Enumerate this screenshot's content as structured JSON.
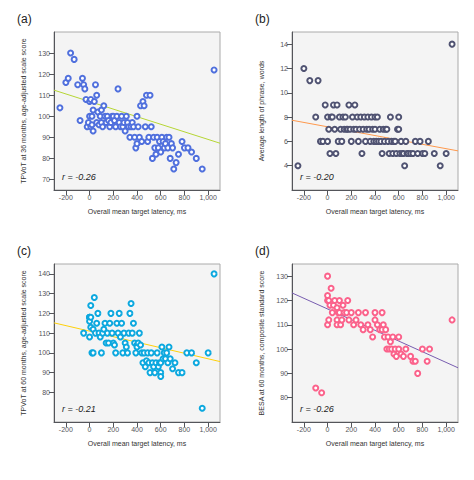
{
  "chart_data": [
    {
      "type": "scatter",
      "title": "(a)",
      "annotations": [
        "r = -0.26"
      ],
      "xlabel": "Overall mean target latency, ms",
      "ylabel": "TPVoT at 36 months, age-adjusted scale score",
      "xlim": [
        -300,
        1100
      ],
      "ylim": [
        65,
        140
      ],
      "xticks": [
        -200,
        0,
        200,
        400,
        600,
        800,
        1000
      ],
      "yticks": [
        70,
        80,
        90,
        100,
        110,
        120,
        130
      ],
      "grid": false,
      "series": [
        {
          "type": "scatter",
          "marker": "circle",
          "x": [
            -250,
            -200,
            -180,
            -160,
            -130,
            -100,
            -80,
            -60,
            -50,
            -40,
            -30,
            -20,
            -10,
            0,
            0,
            10,
            10,
            20,
            20,
            30,
            30,
            40,
            50,
            60,
            60,
            70,
            80,
            90,
            100,
            100,
            110,
            120,
            130,
            140,
            150,
            160,
            170,
            180,
            190,
            200,
            210,
            220,
            230,
            240,
            250,
            260,
            270,
            280,
            290,
            300,
            310,
            320,
            330,
            340,
            350,
            360,
            370,
            380,
            390,
            400,
            400,
            410,
            420,
            430,
            440,
            450,
            460,
            470,
            480,
            490,
            500,
            510,
            520,
            530,
            540,
            550,
            560,
            570,
            580,
            590,
            600,
            610,
            620,
            630,
            640,
            650,
            660,
            670,
            680,
            690,
            700,
            710,
            730,
            750,
            780,
            800,
            830,
            860,
            900,
            950,
            1050
          ],
          "values": [
            104,
            116,
            118,
            130,
            127,
            115,
            98,
            118,
            115,
            113,
            108,
            95,
            97,
            100,
            107,
            95,
            108,
            100,
            96,
            93,
            103,
            107,
            115,
            110,
            97,
            102,
            96,
            100,
            97,
            103,
            95,
            105,
            100,
            97,
            100,
            98,
            95,
            97,
            100,
            100,
            98,
            95,
            100,
            113,
            97,
            95,
            100,
            95,
            97,
            93,
            100,
            97,
            95,
            90,
            95,
            97,
            95,
            90,
            85,
            87,
            100,
            95,
            90,
            105,
            88,
            107,
            105,
            95,
            110,
            88,
            90,
            110,
            95,
            80,
            90,
            85,
            82,
            90,
            85,
            88,
            83,
            90,
            88,
            85,
            87,
            90,
            85,
            90,
            80,
            87,
            85,
            75,
            78,
            82,
            88,
            85,
            85,
            83,
            80,
            75,
            122
          ]
        },
        {
          "type": "line",
          "x": [
            -300,
            1100
          ],
          "values": [
            112.4,
            87.2
          ]
        }
      ]
    },
    {
      "type": "scatter",
      "title": "(b)",
      "annotations": [
        "r = -0.20"
      ],
      "xlabel": "Overall mean target latency, ms",
      "ylabel": "Average length of phrase, words",
      "xlim": [
        -300,
        1100
      ],
      "ylim": [
        2,
        15
      ],
      "xticks": [
        -200,
        0,
        200,
        400,
        600,
        800,
        1000
      ],
      "yticks": [
        4,
        6,
        8,
        10,
        12,
        14
      ],
      "grid": false,
      "series": [
        {
          "type": "scatter",
          "marker": "circle",
          "x": [
            -250,
            -200,
            -150,
            -100,
            -80,
            -60,
            -40,
            -20,
            0,
            0,
            10,
            20,
            30,
            40,
            50,
            60,
            70,
            80,
            90,
            100,
            110,
            120,
            130,
            140,
            150,
            160,
            170,
            180,
            190,
            200,
            210,
            220,
            230,
            240,
            250,
            260,
            270,
            280,
            290,
            300,
            310,
            320,
            330,
            340,
            350,
            360,
            370,
            380,
            390,
            400,
            400,
            410,
            420,
            430,
            440,
            450,
            460,
            470,
            480,
            490,
            500,
            510,
            520,
            530,
            540,
            550,
            560,
            570,
            580,
            590,
            600,
            600,
            610,
            620,
            630,
            640,
            650,
            660,
            670,
            680,
            700,
            720,
            740,
            760,
            780,
            800,
            820,
            850,
            900,
            950,
            1000,
            1050
          ],
          "values": [
            4,
            12,
            11,
            8,
            11,
            6,
            6,
            9,
            8,
            6,
            7,
            5,
            8,
            8,
            9,
            7,
            5,
            9,
            6,
            8,
            7,
            6,
            8,
            7,
            8,
            7,
            7,
            9,
            7,
            6,
            8,
            7,
            9,
            7,
            8,
            6,
            7,
            8,
            5,
            7,
            8,
            6,
            7,
            8,
            7,
            6,
            8,
            7,
            6,
            7,
            8,
            6,
            8,
            6,
            7,
            6,
            5,
            7,
            6,
            7,
            7,
            6,
            5,
            8,
            6,
            5,
            6,
            6,
            5,
            7,
            7,
            8,
            5,
            6,
            5,
            5,
            4,
            6,
            5,
            5,
            5,
            5,
            6,
            5,
            6,
            5,
            5,
            6,
            5,
            4,
            5,
            14
          ]
        },
        {
          "type": "line",
          "x": [
            -300,
            1100
          ],
          "values": [
            7.74,
            5.22
          ]
        }
      ]
    },
    {
      "type": "scatter",
      "title": "(c)",
      "annotations": [
        "r = -0.21"
      ],
      "xlabel": "Overall mean target latency, ms",
      "ylabel": "TPVoT at 60 months, age-adjusted scale score",
      "xlim": [
        -300,
        1100
      ],
      "ylim": [
        65,
        145
      ],
      "xticks": [
        -200,
        0,
        200,
        400,
        600,
        800,
        1000
      ],
      "yticks": [
        80,
        90,
        100,
        110,
        120,
        130,
        140
      ],
      "grid": false,
      "series": [
        {
          "type": "scatter",
          "marker": "circle",
          "x": [
            -50,
            0,
            0,
            0,
            0,
            0,
            10,
            10,
            10,
            20,
            30,
            30,
            40,
            50,
            60,
            70,
            80,
            90,
            100,
            110,
            120,
            130,
            140,
            150,
            160,
            170,
            180,
            190,
            200,
            210,
            220,
            230,
            240,
            250,
            260,
            270,
            280,
            290,
            300,
            310,
            320,
            330,
            340,
            350,
            360,
            370,
            380,
            390,
            400,
            400,
            410,
            420,
            430,
            440,
            450,
            460,
            470,
            480,
            490,
            500,
            510,
            520,
            530,
            540,
            550,
            560,
            570,
            580,
            590,
            600,
            600,
            600,
            610,
            620,
            630,
            640,
            650,
            660,
            670,
            680,
            700,
            720,
            750,
            780,
            820,
            860,
            900,
            950,
            1000,
            1050
          ],
          "values": [
            110,
            118,
            118,
            118,
            108,
            116,
            113,
            118,
            124,
            100,
            100,
            112,
            128,
            110,
            115,
            120,
            110,
            108,
            100,
            110,
            112,
            115,
            105,
            110,
            105,
            115,
            120,
            110,
            105,
            104,
            100,
            115,
            110,
            120,
            108,
            115,
            100,
            110,
            105,
            103,
            100,
            110,
            120,
            125,
            110,
            115,
            105,
            100,
            104,
            103,
            105,
            110,
            104,
            100,
            95,
            100,
            93,
            96,
            100,
            95,
            90,
            100,
            95,
            93,
            90,
            95,
            100,
            93,
            95,
            95,
            90,
            88,
            103,
            97,
            100,
            97,
            100,
            95,
            103,
            97,
            92,
            95,
            90,
            90,
            100,
            100,
            95,
            72,
            100,
            140
          ]
        },
        {
          "type": "line",
          "x": [
            -300,
            1100
          ],
          "values": [
            115.2,
            95.6
          ]
        }
      ]
    },
    {
      "type": "scatter",
      "title": "(d)",
      "annotations": [
        "r = -0.26"
      ],
      "xlabel": "Overall mean target latency, ms",
      "ylabel": "BESA at 60 months, composite standard score",
      "xlim": [
        -300,
        1100
      ],
      "ylim": [
        70,
        135
      ],
      "xticks": [
        -200,
        0,
        200,
        400,
        600,
        800,
        1000
      ],
      "yticks": [
        80,
        90,
        100,
        110,
        120,
        130
      ],
      "grid": false,
      "series": [
        {
          "type": "scatter",
          "marker": "circle",
          "x": [
            -100,
            -50,
            0,
            0,
            0,
            0,
            10,
            10,
            20,
            30,
            40,
            50,
            60,
            80,
            80,
            80,
            90,
            100,
            100,
            110,
            120,
            130,
            140,
            160,
            170,
            180,
            200,
            220,
            240,
            260,
            280,
            300,
            320,
            340,
            360,
            380,
            400,
            400,
            420,
            440,
            460,
            460,
            470,
            480,
            490,
            500,
            510,
            520,
            530,
            540,
            550,
            560,
            570,
            580,
            600,
            600,
            620,
            640,
            660,
            700,
            720,
            740,
            760,
            800,
            840,
            860,
            1050
          ],
          "values": [
            84,
            82,
            122,
            130,
            120,
            110,
            120,
            112,
            118,
            125,
            115,
            118,
            120,
            112,
            117,
            110,
            115,
            120,
            115,
            110,
            112,
            118,
            115,
            115,
            120,
            112,
            115,
            110,
            112,
            115,
            110,
            108,
            115,
            110,
            108,
            105,
            115,
            112,
            110,
            108,
            115,
            108,
            110,
            105,
            108,
            100,
            105,
            100,
            103,
            100,
            105,
            98,
            100,
            97,
            100,
            105,
            98,
            97,
            100,
            97,
            95,
            95,
            90,
            100,
            95,
            100,
            112
          ]
        },
        {
          "type": "line",
          "x": [
            -300,
            1100
          ],
          "values": [
            123.1,
            92.3
          ]
        }
      ]
    }
  ]
}
